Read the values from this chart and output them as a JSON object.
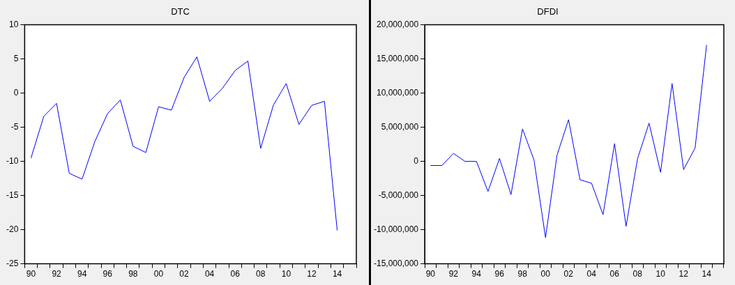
{
  "chart_data": [
    {
      "type": "line",
      "title": "DTC",
      "categories": [
        "90",
        null,
        "92",
        null,
        "94",
        null,
        "96",
        null,
        "98",
        null,
        "00",
        null,
        "02",
        null,
        "04",
        null,
        "06",
        null,
        "08",
        null,
        "10",
        null,
        "12",
        null,
        "14",
        null
      ],
      "series": [
        {
          "color": "#0000ff",
          "values": [
            -9.5,
            -3.4,
            -1.5,
            -11.75,
            -12.6,
            -7.1,
            -3.0,
            -1.0,
            -7.8,
            -8.7,
            -2.0,
            -2.5,
            2.3,
            5.3,
            -1.2,
            0.7,
            3.3,
            4.7,
            -8.1,
            -1.75,
            1.4,
            -4.6,
            -1.8,
            -1.2,
            -20.1,
            null
          ]
        }
      ],
      "ylim": [
        -25,
        10
      ],
      "yticks": [
        -25,
        -20,
        -15,
        -10,
        -5,
        0,
        5,
        10
      ],
      "grid": false,
      "legend": false,
      "marker": "none",
      "line_style": "solid"
    },
    {
      "type": "line",
      "title": "DFDI",
      "categories": [
        "90",
        null,
        "92",
        null,
        "94",
        null,
        "96",
        null,
        "98",
        null,
        "00",
        null,
        "02",
        null,
        "04",
        null,
        "06",
        null,
        "08",
        null,
        "10",
        null,
        "12",
        null,
        "14",
        null
      ],
      "series": [
        {
          "color": "#0000ff",
          "values": [
            -600000,
            -600000,
            1170000,
            0,
            0,
            -4400000,
            430000,
            -4860000,
            4750000,
            200000,
            -11170000,
            900000,
            6100000,
            -2700000,
            -3200000,
            -7800000,
            2600000,
            -9500000,
            400000,
            5600000,
            -1600000,
            11400000,
            -1200000,
            1950000,
            17050000,
            null
          ]
        }
      ],
      "ylim": [
        -15000000,
        20000000
      ],
      "yticks": [
        {
          "value": -15000000,
          "label": "-15,000,000"
        },
        {
          "value": -10000000,
          "label": "-10,000,000"
        },
        {
          "value": -5000000,
          "label": "-5,000,000"
        },
        0,
        {
          "value": 5000000,
          "label": "5,000,000"
        },
        {
          "value": 10000000,
          "label": "10,000,000"
        },
        {
          "value": 15000000,
          "label": "15,000,000"
        },
        {
          "value": 20000000,
          "label": "20,000,000"
        }
      ],
      "grid": false,
      "legend": false,
      "marker": "none",
      "line_style": "solid"
    }
  ]
}
